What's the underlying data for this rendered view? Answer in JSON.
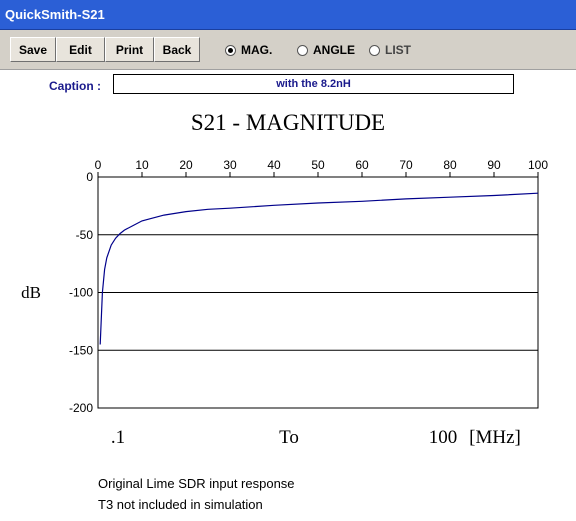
{
  "window": {
    "title": "QuickSmith-S21"
  },
  "toolbar": {
    "buttons": [
      {
        "label": "Save"
      },
      {
        "label": "Edit"
      },
      {
        "label": "Print"
      },
      {
        "label": "Back"
      }
    ],
    "modes": [
      {
        "label": "MAG.",
        "selected": true
      },
      {
        "label": "ANGLE",
        "selected": false
      },
      {
        "label": "LIST",
        "selected": false
      }
    ]
  },
  "caption": {
    "label": "Caption :",
    "value": "with the 8.2nH"
  },
  "chart_data": {
    "type": "line",
    "title": "S21 - MAGNITUDE",
    "ylabel": "dB",
    "xlim": [
      0,
      100
    ],
    "ylim": [
      -200,
      0
    ],
    "x_ticks": [
      "0",
      "10",
      "20",
      "30",
      "40",
      "50",
      "60",
      "70",
      "80",
      "90",
      "100"
    ],
    "y_ticks": [
      "0",
      "-50",
      "-100",
      "-150",
      "-200"
    ],
    "grid": true,
    "range_labels": {
      "start": ".1",
      "mid": "To",
      "end": "100",
      "unit": "[MHz]"
    },
    "series": [
      {
        "color": "#00008b",
        "x": [
          0.5,
          1,
          1.5,
          2,
          3,
          4,
          5,
          6,
          8,
          10,
          12,
          15,
          20,
          25,
          30,
          40,
          50,
          60,
          70,
          80,
          90,
          100
        ],
        "y": [
          -145,
          -100,
          -80,
          -70,
          -59,
          -53,
          -49,
          -46,
          -42,
          -38,
          -36,
          -33,
          -30,
          -28,
          -27,
          -24.5,
          -22.5,
          -21,
          -19,
          -17.5,
          -16,
          -14
        ]
      }
    ]
  },
  "footnotes": [
    "Original Lime SDR input response",
    "T3 not included in simulation"
  ]
}
